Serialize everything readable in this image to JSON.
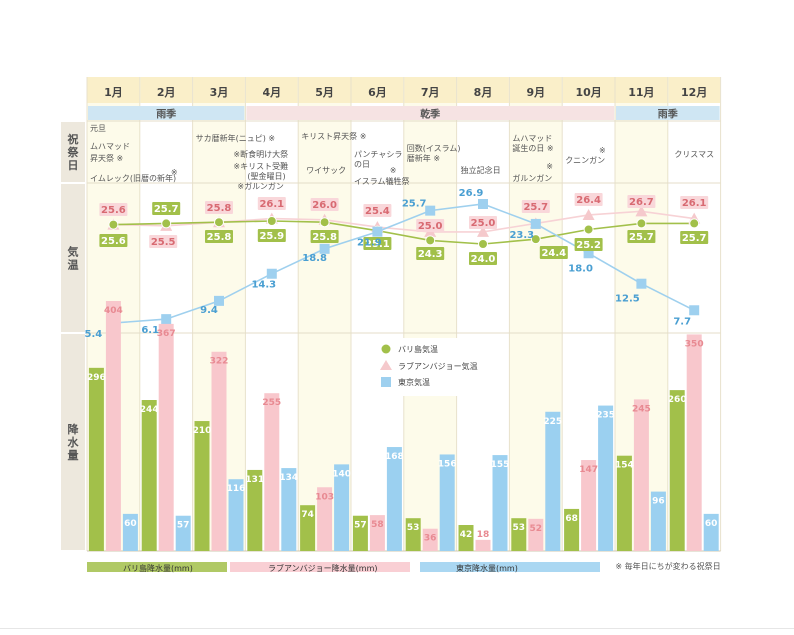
{
  "chart_data": {
    "type": "bar",
    "months": [
      "1月",
      "2月",
      "3月",
      "4月",
      "5月",
      "6月",
      "7月",
      "8月",
      "9月",
      "10月",
      "11月",
      "12月"
    ],
    "seasons": [
      {
        "label": "雨季",
        "start": 0,
        "end": 2,
        "color": "#cfe6f3"
      },
      {
        "label": "乾季",
        "start": 3,
        "end": 9,
        "color": "#f6e3e3"
      },
      {
        "label": "雨季",
        "start": 10,
        "end": 11,
        "color": "#cfe6f3"
      }
    ],
    "row_labels": {
      "festivals": "祝祭日",
      "temperature": "気温",
      "rainfall": "降水量"
    },
    "festivals": [
      [
        "元旦",
        "ムハマッド",
        "昇天祭 ※",
        "イムレック(旧暦の新年)"
      ],
      [
        "※"
      ],
      [
        "サカ暦新年(ニュピ) ※"
      ],
      [
        "※断食明け大祭",
        "※キリスト受難",
        "(聖金曜日)",
        "※ガルンガン"
      ],
      [
        "キリスト昇天祭 ※",
        "ワイサック"
      ],
      [
        "パンチャシラ",
        "の日",
        "※",
        "イスラム犠牲祭"
      ],
      [
        "回数(イスラム)",
        "暦新年 ※"
      ],
      [
        "独立記念日"
      ],
      [
        "ムハマッド",
        "誕生の日 ※",
        "※",
        "ガルンガン"
      ],
      [
        "※",
        "クニンガン"
      ],
      [],
      [
        "クリスマス"
      ]
    ],
    "series": [
      {
        "name": "バリ島気温",
        "kind": "temperature",
        "marker": "circle",
        "color": "#a2c04a",
        "values": [
          25.6,
          25.7,
          25.8,
          25.9,
          25.8,
          25.1,
          24.3,
          24.0,
          24.4,
          25.2,
          25.7,
          25.7
        ]
      },
      {
        "name": "ラブアンバジョー気温",
        "kind": "temperature",
        "marker": "triangle",
        "color": "#f5c9cc",
        "values": [
          25.6,
          25.5,
          25.8,
          26.1,
          26.0,
          25.4,
          25.0,
          25.0,
          25.7,
          26.4,
          26.7,
          26.1
        ]
      },
      {
        "name": "東京気温",
        "kind": "temperature",
        "marker": "square",
        "color": "#8ec8ea",
        "values": [
          5.4,
          6.1,
          9.4,
          14.3,
          18.8,
          21.9,
          25.7,
          26.9,
          23.3,
          18.0,
          12.5,
          7.7
        ]
      },
      {
        "name": "バリ島降水量(mm)",
        "kind": "rainfall",
        "color": "#a2c04a",
        "values": [
          296,
          244,
          210,
          131,
          74,
          57,
          53,
          42,
          53,
          68,
          154,
          260
        ]
      },
      {
        "name": "ラブアンバジョー降水量(mm)",
        "kind": "rainfall",
        "color": "#f8c7cc",
        "values": [
          404,
          367,
          322,
          255,
          103,
          58,
          36,
          18,
          52,
          147,
          245,
          350
        ]
      },
      {
        "name": "東京降水量(mm)",
        "kind": "rainfall",
        "color": "#9bd0f0",
        "values": [
          60,
          57,
          116,
          134,
          140,
          168,
          156,
          155,
          225,
          235,
          96,
          60
        ]
      }
    ],
    "temperature_legend": [
      "バリ島気温",
      "ラブアンバジョー気温",
      "東京気温"
    ],
    "bottom_legend": [
      "バリ島降水量(mm)",
      "ラブアンバジョー降水量(mm)",
      "東京降水量(mm)"
    ],
    "note": "※ 毎年日にちが変わる祝祭日"
  }
}
